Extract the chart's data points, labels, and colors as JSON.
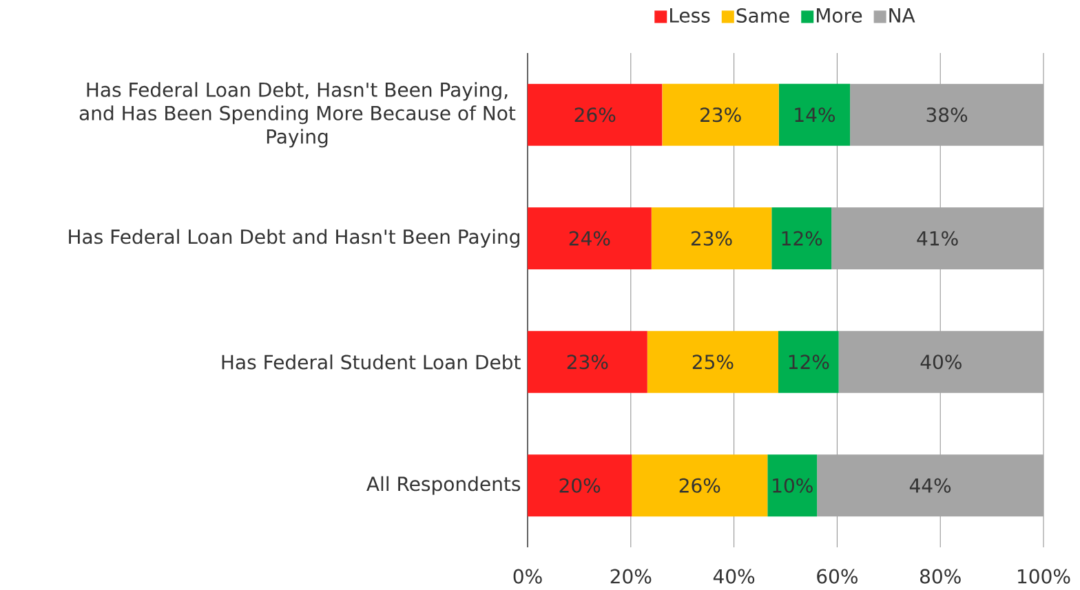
{
  "chart_data": {
    "type": "bar",
    "orientation": "horizontal",
    "stacked": true,
    "categories": [
      "Has Federal Loan Debt, Hasn't Been Paying, and Has Been Spending More Because of Not Paying",
      "Has Federal Loan Debt and Hasn't Been Paying",
      "Has Federal Student Loan Debt",
      "All Respondents"
    ],
    "series": [
      {
        "name": "Less",
        "color": "#ff1f1f",
        "values": [
          26.1,
          24.0,
          23.2,
          20.2
        ],
        "value_labels": [
          "26%",
          "24%",
          "23%",
          "20%"
        ]
      },
      {
        "name": "Same",
        "color": "#ffc000",
        "values": [
          22.6,
          23.3,
          25.4,
          26.3
        ],
        "value_labels": [
          "23%",
          "23%",
          "25%",
          "26%"
        ]
      },
      {
        "name": "More",
        "color": "#00b050",
        "values": [
          13.8,
          11.6,
          11.7,
          9.6
        ],
        "value_labels": [
          "14%",
          "12%",
          "12%",
          "10%"
        ]
      },
      {
        "name": "NA",
        "color": "#a5a5a5",
        "values": [
          37.5,
          41.1,
          39.7,
          43.9
        ],
        "value_labels": [
          "38%",
          "41%",
          "40%",
          "44%"
        ]
      }
    ],
    "xlim": [
      0,
      100
    ],
    "xticks": [
      {
        "value": 0,
        "label": "0%"
      },
      {
        "value": 20,
        "label": "20%"
      },
      {
        "value": 40,
        "label": "40%"
      },
      {
        "value": 60,
        "label": "60%"
      },
      {
        "value": 80,
        "label": "80%"
      },
      {
        "value": 100,
        "label": "100%"
      }
    ],
    "grid": "x",
    "legend": "top"
  }
}
